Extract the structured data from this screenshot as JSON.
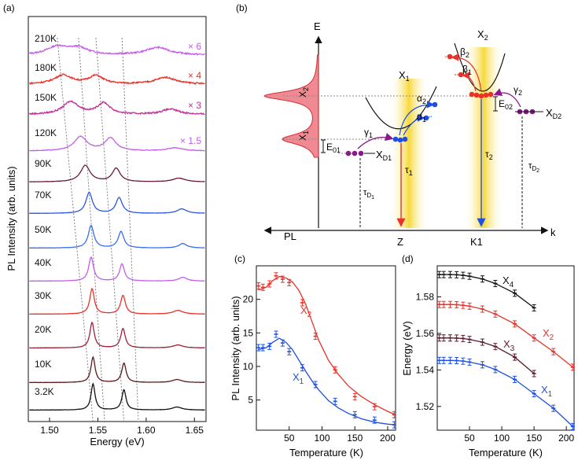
{
  "panel_labels": {
    "a": "(a)",
    "b": "(b)",
    "c": "(c)",
    "d": "(d)"
  },
  "colors": {
    "X1": "#1f4fe0",
    "X2": "#e8322a",
    "X3": "#5b1a2a",
    "X4": "#111111",
    "fill": "#f08a92",
    "valley": "#f6d21a",
    "arrow_purple": "#8a1a8a"
  },
  "panel_a": {
    "chart_data": {
      "type": "line",
      "title": "",
      "xlabel": "Energy (eV)",
      "ylabel": "PL Intensity (arb. units)",
      "xlim": [
        1.478,
        1.662
      ],
      "x_ticks": [
        1.5,
        1.55,
        1.6,
        1.65
      ],
      "x_tick_labels": [
        "1.50",
        "1.55",
        "1.60",
        "1.65"
      ],
      "series": [
        {
          "name": "210K",
          "color": "#c25ee8",
          "scale": "× 6",
          "peaks": [
            {
              "e": 1.508,
              "a": 0.55,
              "w": 0.013
            },
            {
              "e": 1.53,
              "a": 0.45,
              "w": 0.012
            },
            {
              "e": 1.612,
              "a": 0.5,
              "w": 0.015
            }
          ],
          "base": 0.15
        },
        {
          "name": "180K",
          "color": "#e8322a",
          "scale": "× 4",
          "peaks": [
            {
              "e": 1.514,
              "a": 0.6,
              "w": 0.011
            },
            {
              "e": 1.548,
              "a": 0.55,
              "w": 0.009
            },
            {
              "e": 1.62,
              "a": 0.45,
              "w": 0.013
            }
          ],
          "base": 0.15
        },
        {
          "name": "150K",
          "color": "#c0309a",
          "scale": "× 3",
          "peaks": [
            {
              "e": 1.522,
              "a": 0.85,
              "w": 0.01
            },
            {
              "e": 1.556,
              "a": 0.75,
              "w": 0.008
            },
            {
              "e": 1.625,
              "a": 0.35,
              "w": 0.011
            }
          ],
          "base": 0.12
        },
        {
          "name": "120K",
          "color": "#c25ee8",
          "scale": "× 1.5",
          "peaks": [
            {
              "e": 1.532,
              "a": 0.95,
              "w": 0.008
            },
            {
              "e": 1.563,
              "a": 0.85,
              "w": 0.007
            },
            {
              "e": 1.63,
              "a": 0.2,
              "w": 0.01
            }
          ],
          "base": 0.05
        },
        {
          "name": "90K",
          "color": "#6b1a3a",
          "scale": "",
          "peaks": [
            {
              "e": 1.537,
              "a": 1.1,
              "w": 0.006
            },
            {
              "e": 1.569,
              "a": 0.9,
              "w": 0.005
            },
            {
              "e": 1.634,
              "a": 0.25,
              "w": 0.008
            }
          ],
          "base": 0.03
        },
        {
          "name": "70K",
          "color": "#2f57e0",
          "scale": "",
          "peaks": [
            {
              "e": 1.541,
              "a": 1.4,
              "w": 0.004
            },
            {
              "e": 1.572,
              "a": 1.05,
              "w": 0.004
            },
            {
              "e": 1.637,
              "a": 0.3,
              "w": 0.006
            }
          ],
          "base": 0.03
        },
        {
          "name": "50K",
          "color": "#3a6df0",
          "scale": "",
          "peaks": [
            {
              "e": 1.543,
              "a": 1.5,
              "w": 0.0035
            },
            {
              "e": 1.574,
              "a": 1.1,
              "w": 0.0035
            },
            {
              "e": 1.638,
              "a": 0.3,
              "w": 0.005
            }
          ],
          "base": 0.03
        },
        {
          "name": "40K",
          "color": "#c25ee8",
          "scale": "",
          "peaks": [
            {
              "e": 1.543,
              "a": 1.6,
              "w": 0.003
            },
            {
              "e": 1.575,
              "a": 1.15,
              "w": 0.003
            },
            {
              "e": 1.638,
              "a": 0.25,
              "w": 0.005
            }
          ],
          "base": 0.03
        },
        {
          "name": "30K",
          "color": "#e8322a",
          "scale": "",
          "peaks": [
            {
              "e": 1.544,
              "a": 1.7,
              "w": 0.0028
            },
            {
              "e": 1.576,
              "a": 1.25,
              "w": 0.003
            },
            {
              "e": 1.633,
              "a": 0.25,
              "w": 0.006
            }
          ],
          "base": 0.03
        },
        {
          "name": "20K",
          "color": "#a02035",
          "scale": "",
          "peaks": [
            {
              "e": 1.544,
              "a": 1.7,
              "w": 0.0027
            },
            {
              "e": 1.576,
              "a": 1.3,
              "w": 0.0028
            },
            {
              "e": 1.633,
              "a": 0.2,
              "w": 0.006
            }
          ],
          "base": 0.03
        },
        {
          "name": "10K",
          "color": "#5a1a1a",
          "scale": "",
          "peaks": [
            {
              "e": 1.545,
              "a": 1.7,
              "w": 0.0026
            },
            {
              "e": 1.577,
              "a": 1.3,
              "w": 0.0027
            },
            {
              "e": 1.632,
              "a": 0.2,
              "w": 0.006
            }
          ],
          "base": 0.03
        },
        {
          "name": "3.2K",
          "color": "#111111",
          "scale": "",
          "peaks": [
            {
              "e": 1.545,
              "a": 1.75,
              "w": 0.0025
            },
            {
              "e": 1.577,
              "a": 1.35,
              "w": 0.0026
            },
            {
              "e": 1.632,
              "a": 0.2,
              "w": 0.006
            }
          ],
          "base": 0.03
        }
      ],
      "guide_lines": [
        {
          "top": 1.508,
          "bottom": 1.545
        },
        {
          "top": 1.53,
          "bottom": 1.557
        },
        {
          "top": 1.548,
          "bottom": 1.577
        },
        {
          "top": 1.575,
          "bottom": 1.592
        }
      ]
    }
  },
  "panel_b": {
    "axis_E": "E",
    "axis_k": "k",
    "axis_PL": "PL",
    "valley_Z": "Z",
    "valley_K1": "K1",
    "X1": "X",
    "X1_sub": "1",
    "X2": "X",
    "X2_sub": "2",
    "spectrum_X2": "X",
    "spectrum_X2_sub": "2",
    "spectrum_X1": "X",
    "spectrum_X1_sub": "1",
    "E01": "E",
    "E01_sub": "01",
    "E02": "E",
    "E02_sub": "02",
    "XD1": "X",
    "XD1_sub": "D1",
    "XD2": "X",
    "XD2_sub": "D2",
    "gamma1": "γ",
    "gamma1_sub": "1",
    "gamma2": "γ",
    "gamma2_sub": "2",
    "alpha1": "α",
    "alpha1_sub": "1",
    "alpha2": "α",
    "alpha2_sub": "2",
    "beta1": "β",
    "beta1_sub": "1",
    "beta2": "β",
    "beta2_sub": "2",
    "tau1": "τ",
    "tau1_sub": "1",
    "tau2": "τ",
    "tau2_sub": "2",
    "tauD1": "τ",
    "tauD1_sub": "D",
    "tauD1_sub2": "1",
    "tauD2": "τ",
    "tauD2_sub": "D",
    "tauD2_sub2": "2"
  },
  "panel_c": {
    "chart_data": {
      "type": "line",
      "xlabel": "Temperature (K)",
      "ylabel": "PL Intensity (arb. units)",
      "xlim": [
        0,
        212
      ],
      "ylim": [
        0.5,
        25
      ],
      "x_ticks": [
        50,
        100,
        150,
        200
      ],
      "y_ticks": [
        5,
        10,
        15,
        20
      ],
      "series": [
        {
          "name": "X2",
          "label": "X",
          "label_sub": "2",
          "color": "#e8322a",
          "x": [
            3.2,
            10,
            20,
            30,
            40,
            50,
            70,
            90,
            120,
            150,
            180,
            210
          ],
          "y": [
            22.0,
            21.8,
            22.3,
            23.5,
            23.0,
            22.5,
            19.5,
            14.5,
            9.5,
            5.5,
            4.0,
            2.8
          ],
          "fit_x": [
            3,
            15,
            25,
            35,
            45,
            55,
            65,
            75,
            85,
            95,
            110,
            125,
            140,
            160,
            180,
            200,
            212
          ],
          "fit_y": [
            21.4,
            21.8,
            22.8,
            23.4,
            23.2,
            22.6,
            21.3,
            19.3,
            16.6,
            13.9,
            10.9,
            8.8,
            7.1,
            5.5,
            4.3,
            3.3,
            2.8
          ]
        },
        {
          "name": "X1",
          "label": "X",
          "label_sub": "1",
          "color": "#1f4fe0",
          "x": [
            3.2,
            10,
            20,
            30,
            40,
            50,
            70,
            90,
            120,
            150,
            180,
            210
          ],
          "y": [
            12.8,
            12.8,
            13.0,
            14.8,
            13.5,
            12.2,
            9.8,
            7.3,
            4.8,
            2.8,
            2.0,
            1.3
          ],
          "fit_x": [
            3,
            15,
            25,
            35,
            45,
            55,
            65,
            75,
            85,
            95,
            110,
            125,
            140,
            160,
            180,
            200,
            212
          ],
          "fit_y": [
            12.5,
            12.8,
            13.6,
            14.2,
            13.6,
            12.5,
            10.9,
            9.3,
            7.8,
            6.5,
            4.9,
            3.8,
            3.0,
            2.2,
            1.7,
            1.4,
            1.3
          ]
        }
      ]
    }
  },
  "panel_d": {
    "chart_data": {
      "type": "line",
      "xlabel": "Temperature (K)",
      "ylabel": "Energy (eV)",
      "xlim": [
        0,
        212
      ],
      "ylim": [
        1.507,
        1.597
      ],
      "x_ticks": [
        50,
        100,
        150,
        200
      ],
      "y_ticks": [
        1.52,
        1.54,
        1.56,
        1.58
      ],
      "series": [
        {
          "name": "X4",
          "label": "X",
          "label_sub": "4",
          "color": "#111111",
          "x": [
            3.2,
            10,
            20,
            30,
            40,
            50,
            70,
            90,
            120,
            150
          ],
          "y": [
            1.5922,
            1.5922,
            1.5922,
            1.5921,
            1.5918,
            1.5913,
            1.5898,
            1.5873,
            1.582,
            1.574
          ]
        },
        {
          "name": "X2",
          "label": "X",
          "label_sub": "2",
          "color": "#e8322a",
          "x": [
            3.2,
            10,
            20,
            30,
            40,
            50,
            70,
            90,
            120,
            150,
            180,
            210
          ],
          "y": [
            1.5758,
            1.5758,
            1.5758,
            1.5757,
            1.5754,
            1.5749,
            1.5733,
            1.5706,
            1.5652,
            1.5575,
            1.55,
            1.5415
          ]
        },
        {
          "name": "X3",
          "label": "X",
          "label_sub": "3",
          "color": "#5b1a2a",
          "x": [
            3.2,
            10,
            20,
            30,
            40,
            50,
            70,
            90,
            120,
            150
          ],
          "y": [
            1.5575,
            1.5575,
            1.5575,
            1.5574,
            1.5572,
            1.5567,
            1.5552,
            1.5528,
            1.547,
            1.538
          ]
        },
        {
          "name": "X1",
          "label": "X",
          "label_sub": "1",
          "color": "#1f4fe0",
          "x": [
            3.2,
            10,
            20,
            30,
            40,
            50,
            70,
            90,
            120,
            150,
            180,
            210
          ],
          "y": [
            1.5452,
            1.5452,
            1.5452,
            1.5451,
            1.5448,
            1.5443,
            1.5428,
            1.5402,
            1.5348,
            1.527,
            1.519,
            1.509
          ]
        }
      ]
    }
  }
}
